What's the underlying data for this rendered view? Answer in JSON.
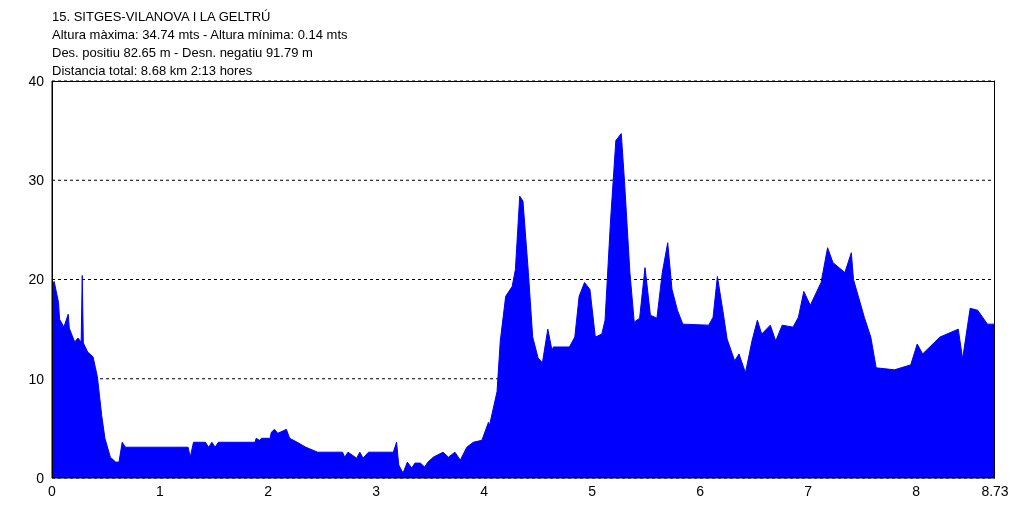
{
  "chart_data": {
    "type": "area",
    "title": "15. SITGES-VILANOVA I LA GELTRÚ",
    "annotations": [
      "Altura màxima: 34.74 mts - Altura mínima: 0.14 mts",
      "Des. positiu 82.65 m -  Desn. negatiu 91.79 m",
      "Distancia total: 8.68 km 2:13 hores"
    ],
    "x": [
      0,
      0.02,
      0.06,
      0.07,
      0.11,
      0.15,
      0.16,
      0.21,
      0.24,
      0.27,
      0.28,
      0.29,
      0.33,
      0.38,
      0.42,
      0.46,
      0.49,
      0.54,
      0.59,
      0.62,
      0.65,
      0.68,
      1.26,
      1.28,
      1.31,
      1.42,
      1.45,
      1.48,
      1.51,
      1.54,
      1.88,
      1.89,
      1.92,
      1.94,
      2.02,
      2.03,
      2.06,
      2.09,
      2.17,
      2.2,
      2.27,
      2.35,
      2.46,
      2.69,
      2.71,
      2.74,
      2.82,
      2.85,
      2.88,
      2.93,
      3.16,
      3.19,
      3.21,
      3.25,
      3.29,
      3.33,
      3.36,
      3.41,
      3.45,
      3.48,
      3.53,
      3.62,
      3.67,
      3.73,
      3.78,
      3.84,
      3.9,
      3.98,
      4.04,
      4.05,
      4.12,
      4.15,
      4.2,
      4.26,
      4.29,
      4.33,
      4.36,
      4.41,
      4.45,
      4.5,
      4.54,
      4.59,
      4.63,
      4.64,
      4.79,
      4.84,
      4.88,
      4.93,
      4.98,
      5.03,
      5.09,
      5.12,
      5.17,
      5.22,
      5.27,
      5.3,
      5.35,
      5.39,
      5.44,
      5.49,
      5.54,
      5.6,
      5.65,
      5.7,
      5.74,
      5.79,
      5.84,
      6.08,
      6.12,
      6.16,
      6.21,
      6.25,
      6.32,
      6.36,
      6.42,
      6.48,
      6.53,
      6.57,
      6.65,
      6.7,
      6.76,
      6.86,
      6.91,
      6.96,
      7.02,
      7.12,
      7.18,
      7.23,
      7.34,
      7.4,
      7.42,
      7.52,
      7.58,
      7.63,
      7.8,
      7.95,
      8.01,
      8.06,
      8.22,
      8.39,
      8.43,
      8.5,
      8.57,
      8.66,
      8.73
    ],
    "series": [
      {
        "color": "#0000ff",
        "values": [
          19.5,
          19.8,
          17.7,
          16,
          15.2,
          16.5,
          15.1,
          13.7,
          14.1,
          13.7,
          20.4,
          13.6,
          12.7,
          12.2,
          10.2,
          6.3,
          4,
          2.1,
          1.6,
          1.6,
          3.6,
          3.1,
          3.1,
          2.1,
          3.6,
          3.6,
          3.1,
          3.6,
          3.1,
          3.6,
          3.6,
          4,
          3.8,
          4,
          4,
          4.6,
          4.9,
          4.5,
          4.9,
          4,
          3.6,
          3.1,
          2.6,
          2.6,
          2.1,
          2.6,
          2,
          2.6,
          2,
          2.6,
          2.6,
          3.6,
          1.3,
          0.5,
          1.6,
          1,
          1.5,
          1.5,
          1.1,
          1.6,
          2.1,
          2.6,
          2.1,
          2.6,
          1.8,
          3.1,
          3.6,
          3.8,
          5.6,
          5.3,
          8.7,
          13.8,
          18.3,
          19.3,
          21,
          28.4,
          27.9,
          20.7,
          14.2,
          12.1,
          11.6,
          15,
          12.8,
          13.2,
          13.2,
          14.2,
          18.3,
          19.7,
          19,
          14.2,
          14.5,
          15.9,
          25.8,
          34,
          34.7,
          29.9,
          20.7,
          15.7,
          16.1,
          21.2,
          16.4,
          16.1,
          20.7,
          23.7,
          19,
          16.9,
          15.5,
          15.4,
          16.2,
          20.3,
          16.9,
          14,
          11.8,
          12.5,
          10.6,
          13.8,
          15.9,
          14.5,
          15.4,
          13.8,
          15.4,
          15.2,
          16.2,
          18.8,
          17.4,
          19.7,
          23.2,
          21.7,
          20.7,
          22.7,
          20,
          16.2,
          14.2,
          11.1,
          10.9,
          11.4,
          13.5,
          12.5,
          14.2,
          15,
          12,
          17.1,
          16.9,
          15.5,
          15.5
        ]
      }
    ],
    "xlim": [
      0,
      8.73
    ],
    "xticks": [
      0,
      1,
      2,
      3,
      4,
      5,
      6,
      7,
      8,
      8.73
    ],
    "ylim": [
      0,
      40
    ],
    "yticks": [
      0,
      10,
      20,
      30,
      40
    ],
    "grid": "y"
  }
}
